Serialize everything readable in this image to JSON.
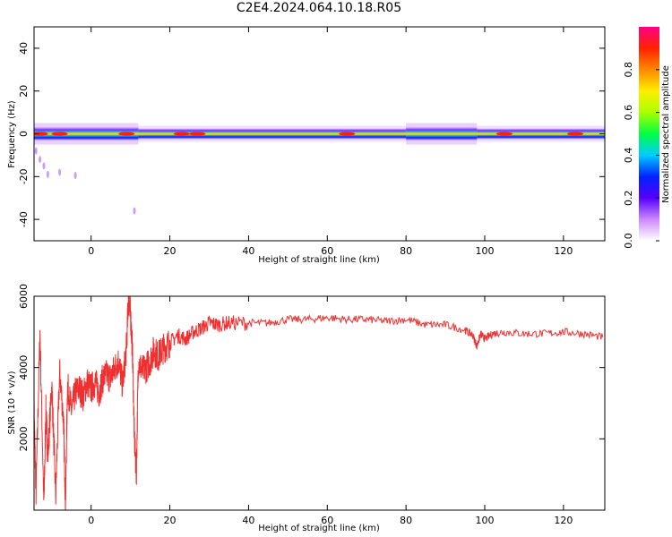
{
  "title": "C2E4.2024.064.10.18.R05",
  "colors": {
    "snr_line": "#f03030",
    "axes": "#000000"
  },
  "chart_data": [
    {
      "type": "heatmap",
      "xlabel": "Height of straight line (km)",
      "ylabel": "Frequency (Hz)",
      "xlim": [
        -14.5,
        130.5
      ],
      "ylim": [
        -50,
        50
      ],
      "xticks": [
        "0",
        "20",
        "40",
        "60",
        "80",
        "100",
        "120"
      ],
      "xtick_values": [
        0,
        20,
        40,
        60,
        80,
        100,
        120
      ],
      "yticks": [
        "40",
        "20",
        "0",
        "-20",
        "-40"
      ],
      "ytick_values": [
        40,
        20,
        0,
        -20,
        -40
      ],
      "colorbar": {
        "label": "Normalized spectral amplitude",
        "range": [
          0,
          1
        ],
        "ticks": [
          "0.0",
          "0.2",
          "0.4",
          "0.6",
          "0.8"
        ],
        "tick_values": [
          0.0,
          0.2,
          0.4,
          0.6,
          0.8
        ],
        "gradient": [
          "#ffffff",
          "#cc88ff",
          "#5500ff",
          "#0022ff",
          "#00ccff",
          "#00ff44",
          "#aaff00",
          "#ffee00",
          "#ff8800",
          "#ff2200",
          "#ff0088"
        ]
      },
      "band": {
        "center_hz": 0,
        "peaks_km": [
          -13,
          -8,
          9,
          23,
          27,
          65,
          105,
          123
        ],
        "wide_regions_km": [
          [
            -14.5,
            12
          ],
          [
            80,
            98
          ]
        ],
        "bursts_km_hz": [
          [
            -14,
            -8
          ],
          [
            -13,
            -12
          ],
          [
            -12,
            -15
          ],
          [
            -11,
            -19
          ],
          [
            -8,
            -18
          ],
          [
            -4,
            -19.5
          ],
          [
            11,
            -36
          ]
        ]
      }
    },
    {
      "type": "line",
      "xlabel": "Height of straight line (km)",
      "ylabel": "SNR (10 * v/v)",
      "xlim": [
        -14.5,
        130.5
      ],
      "ylim": [
        0,
        6000
      ],
      "xticks": [
        "0",
        "20",
        "40",
        "60",
        "80",
        "100",
        "120"
      ],
      "xtick_values": [
        0,
        20,
        40,
        60,
        80,
        100,
        120
      ],
      "yticks": [
        "6000",
        "4000",
        "2000"
      ],
      "ytick_values": [
        6000,
        4000,
        2000
      ],
      "series": [
        {
          "x": [
            -14.5,
            -14,
            -13,
            -12,
            -11.5,
            -11,
            -10,
            -9,
            -8,
            -7,
            -6.5,
            -6,
            -5,
            -4,
            -3,
            -2,
            -1,
            0,
            1,
            2,
            3,
            4,
            5,
            6,
            7,
            8,
            9,
            9.5,
            10,
            10.5,
            11,
            11.5,
            12,
            13,
            14,
            15,
            16,
            17,
            18,
            19,
            20,
            22,
            24,
            26,
            28,
            30,
            32,
            35,
            40,
            45,
            50,
            55,
            60,
            65,
            70,
            75,
            80,
            85,
            90,
            95,
            97,
            98,
            99,
            100,
            102,
            105,
            110,
            115,
            120,
            125,
            130
          ],
          "y": [
            2700,
            500,
            5000,
            100,
            2800,
            1500,
            3500,
            400,
            3900,
            2500,
            200,
            3500,
            2800,
            3300,
            3400,
            3200,
            3600,
            3400,
            3600,
            3300,
            3700,
            3800,
            3700,
            4000,
            4200,
            3500,
            4600,
            6000,
            5500,
            4500,
            2000,
            1000,
            4200,
            3900,
            4000,
            4200,
            4500,
            4300,
            4500,
            4600,
            4700,
            4900,
            4800,
            5000,
            5100,
            5250,
            5200,
            5250,
            5250,
            5250,
            5350,
            5350,
            5400,
            5350,
            5350,
            5300,
            5350,
            5200,
            5200,
            5050,
            4900,
            4600,
            4950,
            4800,
            4950,
            5000,
            4950,
            4950,
            5000,
            4950,
            4850
          ]
        }
      ]
    }
  ]
}
